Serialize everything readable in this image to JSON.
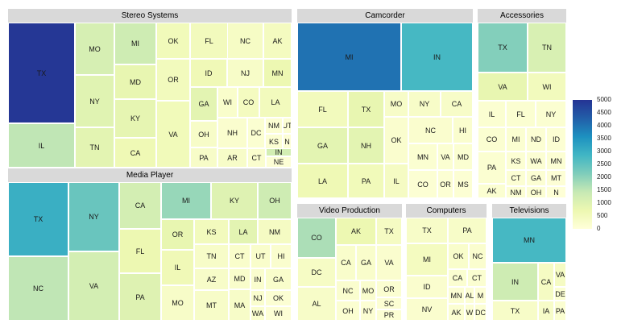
{
  "chart_data": {
    "type": "treemap",
    "color_scale": {
      "min": 0,
      "max": 5000,
      "colors": [
        "#ffffd9",
        "#edf8b1",
        "#c7e9b4",
        "#7fcdbb",
        "#41b6c4",
        "#1d91c0",
        "#225ea8",
        "#253494"
      ]
    },
    "legend": {
      "placement": "right",
      "ticks": [
        5000,
        4500,
        4000,
        3500,
        3000,
        2500,
        2000,
        1500,
        1000,
        500,
        0
      ]
    },
    "panels": [
      {
        "title": "Stereo Systems",
        "cells": [
          {
            "label": "TX",
            "value": 4950
          },
          {
            "label": "IL",
            "value": 1500
          },
          {
            "label": "MO",
            "value": 1150
          },
          {
            "label": "NY",
            "value": 950
          },
          {
            "label": "TN",
            "value": 900
          },
          {
            "label": "MI",
            "value": 1300
          },
          {
            "label": "MD",
            "value": 800
          },
          {
            "label": "KY",
            "value": 850
          },
          {
            "label": "CA",
            "value": 650
          },
          {
            "label": "OK",
            "value": 550
          },
          {
            "label": "OR",
            "value": 500
          },
          {
            "label": "VA",
            "value": 550
          },
          {
            "label": "FL",
            "value": 500
          },
          {
            "label": "ID",
            "value": 600
          },
          {
            "label": "NC",
            "value": 350
          },
          {
            "label": "NJ",
            "value": 300
          },
          {
            "label": "AK",
            "value": 450
          },
          {
            "label": "MN",
            "value": 700
          },
          {
            "label": "GA",
            "value": 900
          },
          {
            "label": "OH",
            "value": 300
          },
          {
            "label": "PA",
            "value": 300
          },
          {
            "label": "WI",
            "value": 250
          },
          {
            "label": "CO",
            "value": 450
          },
          {
            "label": "LA",
            "value": 500
          },
          {
            "label": "NH",
            "value": 200
          },
          {
            "label": "DC",
            "value": 150
          },
          {
            "label": "NM",
            "value": 100
          },
          {
            "label": "UT",
            "value": 100
          },
          {
            "label": "KS",
            "value": 100
          },
          {
            "label": "N",
            "value": 80
          },
          {
            "label": "AR",
            "value": 300
          },
          {
            "label": "CT",
            "value": 200
          },
          {
            "label": "IN",
            "value": 1200
          },
          {
            "label": "NE",
            "value": 80
          }
        ]
      },
      {
        "title": "Camcorder",
        "cells": [
          {
            "label": "MI",
            "value": 4000
          },
          {
            "label": "IN",
            "value": 2800
          },
          {
            "label": "FL",
            "value": 500
          },
          {
            "label": "TX",
            "value": 800
          },
          {
            "label": "MO",
            "value": 300
          },
          {
            "label": "NY",
            "value": 300
          },
          {
            "label": "CA",
            "value": 300
          },
          {
            "label": "GA",
            "value": 900
          },
          {
            "label": "NH",
            "value": 900
          },
          {
            "label": "OK",
            "value": 200
          },
          {
            "label": "NC",
            "value": 200
          },
          {
            "label": "HI",
            "value": 200
          },
          {
            "label": "LA",
            "value": 650
          },
          {
            "label": "PA",
            "value": 550
          },
          {
            "label": "IL",
            "value": 400
          },
          {
            "label": "MN",
            "value": 150
          },
          {
            "label": "VA",
            "value": 150
          },
          {
            "label": "MD",
            "value": 150
          },
          {
            "label": "CO",
            "value": 100
          },
          {
            "label": "OR",
            "value": 100
          },
          {
            "label": "MS",
            "value": 100
          }
        ]
      },
      {
        "title": "Accessories",
        "cells": [
          {
            "label": "TX",
            "value": 2100
          },
          {
            "label": "TN",
            "value": 1100
          },
          {
            "label": "VA",
            "value": 800
          },
          {
            "label": "WI",
            "value": 500
          },
          {
            "label": "IL",
            "value": 150
          },
          {
            "label": "FL",
            "value": 150
          },
          {
            "label": "NY",
            "value": 150
          },
          {
            "label": "CO",
            "value": 150
          },
          {
            "label": "MI",
            "value": 150
          },
          {
            "label": "ND",
            "value": 100
          },
          {
            "label": "ID",
            "value": 100
          },
          {
            "label": "KS",
            "value": 100
          },
          {
            "label": "WA",
            "value": 100
          },
          {
            "label": "MN",
            "value": 100
          },
          {
            "label": "PA",
            "value": 150
          },
          {
            "label": "CT",
            "value": 100
          },
          {
            "label": "GA",
            "value": 100
          },
          {
            "label": "MT",
            "value": 80
          },
          {
            "label": "AK",
            "value": 150
          },
          {
            "label": "NM",
            "value": 100
          },
          {
            "label": "OH",
            "value": 100
          },
          {
            "label": "N",
            "value": 50
          }
        ]
      },
      {
        "title": "Media Player",
        "cells": [
          {
            "label": "TX",
            "value": 3000
          },
          {
            "label": "NC",
            "value": 1500
          },
          {
            "label": "NY",
            "value": 2400
          },
          {
            "label": "VA",
            "value": 1200
          },
          {
            "label": "CA",
            "value": 1200
          },
          {
            "label": "FL",
            "value": 700
          },
          {
            "label": "PA",
            "value": 1000
          },
          {
            "label": "MI",
            "value": 1900
          },
          {
            "label": "KY",
            "value": 1000
          },
          {
            "label": "OH",
            "value": 1300
          },
          {
            "label": "OR",
            "value": 800
          },
          {
            "label": "KS",
            "value": 500
          },
          {
            "label": "LA",
            "value": 900
          },
          {
            "label": "NM",
            "value": 400
          },
          {
            "label": "IL",
            "value": 600
          },
          {
            "label": "TN",
            "value": 300
          },
          {
            "label": "CT",
            "value": 250
          },
          {
            "label": "UT",
            "value": 250
          },
          {
            "label": "HI",
            "value": 200
          },
          {
            "label": "AZ",
            "value": 300
          },
          {
            "label": "MD",
            "value": 250
          },
          {
            "label": "IN",
            "value": 200
          },
          {
            "label": "GA",
            "value": 250
          },
          {
            "label": "NJ",
            "value": 200
          },
          {
            "label": "MO",
            "value": 300
          },
          {
            "label": "MT",
            "value": 300
          },
          {
            "label": "MA",
            "value": 300
          },
          {
            "label": "WA",
            "value": 200
          },
          {
            "label": "OK",
            "value": 100
          },
          {
            "label": "WI",
            "value": 80
          }
        ]
      },
      {
        "title": "Video Production",
        "cells": [
          {
            "label": "CO",
            "value": 1700
          },
          {
            "label": "AK",
            "value": 700
          },
          {
            "label": "TX",
            "value": 400
          },
          {
            "label": "DC",
            "value": 350
          },
          {
            "label": "CA",
            "value": 250
          },
          {
            "label": "GA",
            "value": 250
          },
          {
            "label": "VA",
            "value": 200
          },
          {
            "label": "AL",
            "value": 300
          },
          {
            "label": "NC",
            "value": 200
          },
          {
            "label": "MO",
            "value": 200
          },
          {
            "label": "OR",
            "value": 150
          },
          {
            "label": "OH",
            "value": 150
          },
          {
            "label": "NY",
            "value": 100
          },
          {
            "label": "SC",
            "value": 100
          },
          {
            "label": "PR",
            "value": 100
          }
        ]
      },
      {
        "title": "Computers",
        "cells": [
          {
            "label": "TX",
            "value": 300
          },
          {
            "label": "PA",
            "value": 300
          },
          {
            "label": "MI",
            "value": 450
          },
          {
            "label": "OK",
            "value": 250
          },
          {
            "label": "NC",
            "value": 200
          },
          {
            "label": "ID",
            "value": 200
          },
          {
            "label": "CA",
            "value": 150
          },
          {
            "label": "CT",
            "value": 150
          },
          {
            "label": "NV",
            "value": 200
          },
          {
            "label": "MN",
            "value": 100
          },
          {
            "label": "AL",
            "value": 100
          },
          {
            "label": "M",
            "value": 80
          },
          {
            "label": "AK",
            "value": 150
          },
          {
            "label": "W",
            "value": 100
          },
          {
            "label": "DC",
            "value": 100
          }
        ]
      },
      {
        "title": "Televisions",
        "cells": [
          {
            "label": "MN",
            "value": 2800
          },
          {
            "label": "IN",
            "value": 1300
          },
          {
            "label": "CA",
            "value": 400
          },
          {
            "label": "VA",
            "value": 400
          },
          {
            "label": "DE",
            "value": 150
          },
          {
            "label": "TX",
            "value": 300
          },
          {
            "label": "IA",
            "value": 300
          },
          {
            "label": "PA",
            "value": 150
          }
        ]
      }
    ]
  }
}
